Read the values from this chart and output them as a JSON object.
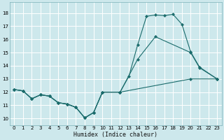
{
  "title": "",
  "xlabel": "Humidex (Indice chaleur)",
  "ylabel": "",
  "xlim": [
    -0.5,
    23.5
  ],
  "ylim": [
    9.5,
    18.8
  ],
  "xticks": [
    0,
    1,
    2,
    3,
    4,
    5,
    6,
    7,
    8,
    9,
    10,
    11,
    12,
    13,
    14,
    15,
    16,
    17,
    18,
    19,
    20,
    21,
    22,
    23
  ],
  "yticks": [
    10,
    11,
    12,
    13,
    14,
    15,
    16,
    17,
    18
  ],
  "bg_color": "#cde8ec",
  "line_color": "#1a6b6b",
  "grid_color": "#b0d4d8",
  "lines": [
    {
      "x": [
        0,
        1,
        2,
        3,
        4,
        5,
        6,
        7,
        8,
        9,
        10,
        12,
        20,
        23
      ],
      "y": [
        12.2,
        12.1,
        11.5,
        11.8,
        11.7,
        11.2,
        11.1,
        10.85,
        10.05,
        10.45,
        12.0,
        12.0,
        13.0,
        13.0
      ]
    },
    {
      "x": [
        0,
        1,
        2,
        3,
        4,
        5,
        6,
        7,
        8,
        9,
        10,
        12,
        14,
        16,
        20,
        21,
        23
      ],
      "y": [
        12.2,
        12.1,
        11.5,
        11.8,
        11.7,
        11.2,
        11.1,
        10.85,
        10.05,
        10.45,
        12.0,
        12.0,
        14.5,
        16.2,
        15.0,
        13.85,
        13.0
      ]
    },
    {
      "x": [
        0,
        1,
        2,
        3,
        4,
        5,
        6,
        7,
        8,
        9,
        10,
        12,
        13,
        14,
        15,
        16,
        17,
        18,
        19,
        20,
        21,
        23
      ],
      "y": [
        12.2,
        12.1,
        11.5,
        11.8,
        11.7,
        11.2,
        11.1,
        10.85,
        10.05,
        10.45,
        12.0,
        12.0,
        13.2,
        15.6,
        17.75,
        17.85,
        17.8,
        17.9,
        17.15,
        15.05,
        13.9,
        13.0
      ]
    }
  ]
}
